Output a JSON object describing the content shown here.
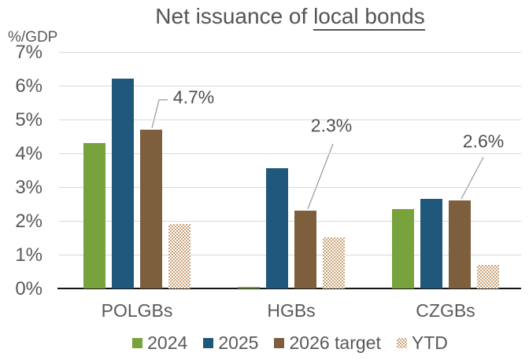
{
  "chart_data": {
    "type": "bar",
    "title": {
      "prefix": "Net issuance of ",
      "underlined": "local bonds"
    },
    "axis_unit_label": "%/GDP",
    "categories": [
      "POLGBs",
      "HGBs",
      "CZGBs"
    ],
    "series": [
      {
        "name": "2024",
        "color": "#78A23B",
        "pattern": false,
        "values": [
          4.3,
          0.05,
          2.35
        ]
      },
      {
        "name": "2025",
        "color": "#1F587A",
        "pattern": false,
        "values": [
          6.2,
          3.55,
          2.65
        ]
      },
      {
        "name": "2026 target",
        "color": "#7D5E3D",
        "pattern": false,
        "values": [
          4.7,
          2.3,
          2.6
        ]
      },
      {
        "name": "YTD",
        "color": "#CBA379",
        "pattern": true,
        "values": [
          1.9,
          1.5,
          0.7
        ]
      }
    ],
    "y_ticks": [
      {
        "value": 7,
        "label": "7%"
      },
      {
        "value": 6,
        "label": "6%"
      },
      {
        "value": 5,
        "label": "5%"
      },
      {
        "value": 4,
        "label": "4%"
      },
      {
        "value": 3,
        "label": "3%"
      },
      {
        "value": 2,
        "label": "2%"
      },
      {
        "value": 1,
        "label": "1%"
      },
      {
        "value": 0,
        "label": "0%"
      }
    ],
    "ylim": [
      0,
      7
    ],
    "grid": true,
    "legend_position": "bottom",
    "annotations": [
      {
        "text": "4.7%",
        "label_x": 246,
        "label_y": 124,
        "line": [
          [
            193,
            163
          ],
          [
            202,
            127
          ],
          [
            213,
            127
          ]
        ]
      },
      {
        "text": "2.3%",
        "label_x": 421,
        "label_y": 160,
        "line": [
          [
            391,
            266
          ],
          [
            423,
            183
          ]
        ]
      },
      {
        "text": "2.6%",
        "label_x": 614,
        "label_y": 180,
        "line": [
          [
            586,
            253
          ],
          [
            614,
            200
          ]
        ]
      }
    ],
    "colors": {
      "gridline": "#d9d9d9",
      "axis_baseline": "#141414",
      "text": "#595959",
      "leader_line": "#9b9b9b"
    }
  }
}
